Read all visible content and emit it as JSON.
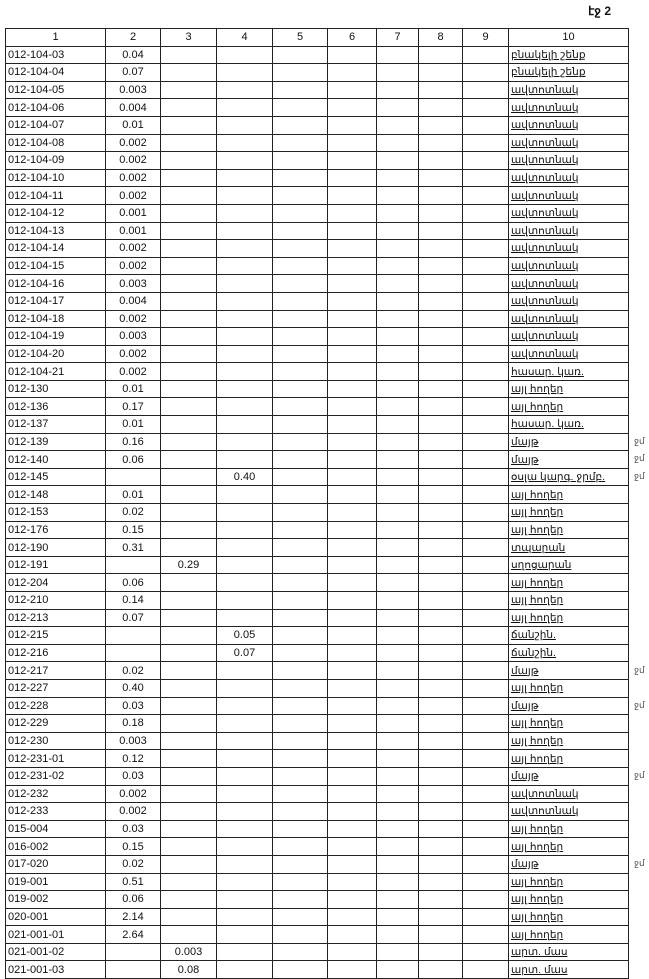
{
  "page_label": "էջ 2",
  "columns": [
    "1",
    "2",
    "3",
    "4",
    "5",
    "6",
    "7",
    "8",
    "9",
    "10"
  ],
  "rows": [
    [
      "012-104-03",
      "0.04",
      "",
      "",
      "բնակելի շենք"
    ],
    [
      "012-104-04",
      "0.07",
      "",
      "",
      "բնակելի շենք"
    ],
    [
      "012-104-05",
      "0.003",
      "",
      "",
      "ավտոտնակ"
    ],
    [
      "012-104-06",
      "0.004",
      "",
      "",
      "ավտոտնակ"
    ],
    [
      "012-104-07",
      "0.01",
      "",
      "",
      "ավտոտնակ"
    ],
    [
      "012-104-08",
      "0.002",
      "",
      "",
      "ավտոտնակ"
    ],
    [
      "012-104-09",
      "0.002",
      "",
      "",
      "ավտոտնակ"
    ],
    [
      "012-104-10",
      "0.002",
      "",
      "",
      "ավտոտնակ"
    ],
    [
      "012-104-11",
      "0.002",
      "",
      "",
      "ավտոտնակ"
    ],
    [
      "012-104-12",
      "0.001",
      "",
      "",
      "ավտոտնակ"
    ],
    [
      "012-104-13",
      "0.001",
      "",
      "",
      "ավտոտնակ"
    ],
    [
      "012-104-14",
      "0.002",
      "",
      "",
      "ավտոտնակ"
    ],
    [
      "012-104-15",
      "0.002",
      "",
      "",
      "ավտոտնակ"
    ],
    [
      "012-104-16",
      "0.003",
      "",
      "",
      "ավտոտնակ"
    ],
    [
      "012-104-17",
      "0.004",
      "",
      "",
      "ավտոտնակ"
    ],
    [
      "012-104-18",
      "0.002",
      "",
      "",
      "ավտոտնակ"
    ],
    [
      "012-104-19",
      "0.003",
      "",
      "",
      "ավտոտնակ"
    ],
    [
      "012-104-20",
      "0.002",
      "",
      "",
      "ավտոտնակ"
    ],
    [
      "012-104-21",
      "0.002",
      "",
      "",
      "հասար. կառ."
    ],
    [
      "012-130",
      "0.01",
      "",
      "",
      "այլ հողեր"
    ],
    [
      "012-136",
      "0.17",
      "",
      "",
      "այլ հողեր"
    ],
    [
      "012-137",
      "0.01",
      "",
      "",
      "հասար. կառ."
    ],
    [
      "012-139",
      "0.16",
      "",
      "",
      "մայթ"
    ],
    [
      "012-140",
      "0.06",
      "",
      "",
      "մայթ"
    ],
    [
      "012-145",
      "",
      "",
      "0.40",
      "օսլա կարգ. ջրմբ."
    ],
    [
      "012-148",
      "0.01",
      "",
      "",
      "այլ հողեր"
    ],
    [
      "012-153",
      "0.02",
      "",
      "",
      "այլ հողեր"
    ],
    [
      "012-176",
      "0.15",
      "",
      "",
      "այլ հողեր"
    ],
    [
      "012-190",
      "0.31",
      "",
      "",
      "տպարան"
    ],
    [
      "012-191",
      "",
      "0.29",
      "",
      "սղոցարան"
    ],
    [
      "012-204",
      "0.06",
      "",
      "",
      "այլ հողեր"
    ],
    [
      "012-210",
      "0.14",
      "",
      "",
      "այլ հողեր"
    ],
    [
      "012-213",
      "0.07",
      "",
      "",
      "այլ հողեր"
    ],
    [
      "012-215",
      "",
      "",
      "0.05",
      "ճանշին."
    ],
    [
      "012-216",
      "",
      "",
      "0.07",
      "ճանշին."
    ],
    [
      "012-217",
      "0.02",
      "",
      "",
      "մայթ"
    ],
    [
      "012-227",
      "0.40",
      "",
      "",
      "այլ հողեր"
    ],
    [
      "012-228",
      "0.03",
      "",
      "",
      "մայթ"
    ],
    [
      "012-229",
      "0.18",
      "",
      "",
      "այլ հողեր"
    ],
    [
      "012-230",
      "0.003",
      "",
      "",
      "այլ հողեր"
    ],
    [
      "012-231-01",
      "0.12",
      "",
      "",
      "այլ հողեր"
    ],
    [
      "012-231-02",
      "0.03",
      "",
      "",
      "մայթ"
    ],
    [
      "012-232",
      "0.002",
      "",
      "",
      "ավտոտնակ"
    ],
    [
      "012-233",
      "0.002",
      "",
      "",
      "ավտոտնակ"
    ],
    [
      "015-004",
      "0.03",
      "",
      "",
      "այլ հողեր"
    ],
    [
      "016-002",
      "0.15",
      "",
      "",
      "այլ հողեր"
    ],
    [
      "017-020",
      "0.02",
      "",
      "",
      "մայթ"
    ],
    [
      "019-001",
      "0.51",
      "",
      "",
      "այլ հողեր"
    ],
    [
      "019-002",
      "0.06",
      "",
      "",
      "այլ հողեր"
    ],
    [
      "020-001",
      "2.14",
      "",
      "",
      "այլ հողեր"
    ],
    [
      "021-001-01",
      "2.64",
      "",
      "",
      "այլ հողեր"
    ],
    [
      "021-001-02",
      "",
      "0.003",
      "",
      "արտ. մաս"
    ],
    [
      "021-001-03",
      "",
      "0.08",
      "",
      "արտ. մաս"
    ]
  ],
  "margin_mark": "ջմ",
  "margin_mark_rows": [
    22,
    23,
    24,
    35,
    37,
    41,
    46
  ]
}
